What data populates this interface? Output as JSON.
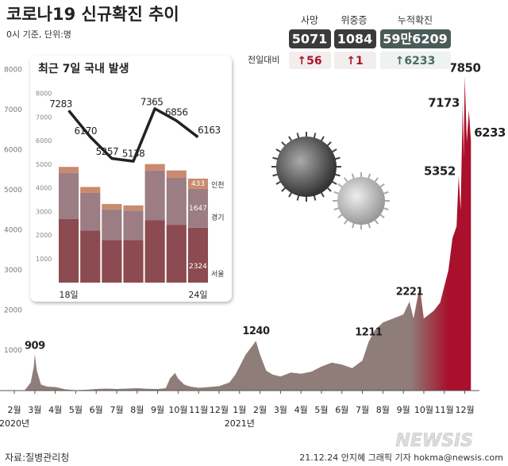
{
  "header": {
    "title": "코로나19 신규확진 추이",
    "subtitle": "0시 기준, 단위:명"
  },
  "stats": {
    "change_title": "전일대비",
    "items": [
      {
        "label": "사망",
        "value": 5071,
        "change": 56,
        "change_label": "↑56"
      },
      {
        "label": "위중증",
        "value": 1084,
        "change": 1,
        "change_label": "↑1"
      },
      {
        "label": "누적확진",
        "value": 596209,
        "value_label": "59만6209",
        "change": 6233,
        "change_label": "↑6233"
      }
    ]
  },
  "chart_data": [
    {
      "type": "area",
      "color": "#8f7d79",
      "highlight_color": "#a8102c",
      "x": [
        -0.5,
        0.5,
        0.8,
        0.95,
        1.0,
        1.1,
        1.3,
        1.6,
        2.0,
        2.5,
        3.0,
        3.5,
        4.0,
        4.5,
        5.0,
        5.5,
        6.0,
        6.5,
        7.0,
        7.4,
        7.6,
        7.85,
        8.0,
        8.3,
        8.6,
        9.0,
        9.5,
        10.0,
        10.5,
        10.8,
        11.0,
        11.3,
        11.6,
        11.8,
        12.0,
        12.3,
        12.6,
        13.0,
        13.5,
        14.0,
        14.5,
        15.0,
        15.5,
        16.0,
        16.5,
        17.0,
        17.3,
        17.6,
        18.0,
        18.5,
        19.0,
        19.3,
        19.5,
        19.8,
        20.0,
        20.5,
        20.8,
        21.0,
        21.2,
        21.4,
        21.6,
        21.7,
        21.8,
        21.9,
        21.95,
        22.0,
        22.1,
        22.2,
        22.3
      ],
      "values": [
        0,
        5,
        200,
        600,
        909,
        500,
        150,
        100,
        90,
        30,
        10,
        20,
        40,
        50,
        40,
        50,
        60,
        45,
        40,
        60,
        300,
        440,
        300,
        150,
        100,
        70,
        90,
        110,
        200,
        400,
        600,
        900,
        1100,
        1240,
        900,
        500,
        400,
        350,
        450,
        420,
        470,
        600,
        700,
        650,
        560,
        750,
        1211,
        1500,
        1700,
        1800,
        1900,
        2221,
        1800,
        2600,
        1800,
        2000,
        2200,
        2600,
        3000,
        3800,
        4100,
        5352,
        4500,
        7173,
        5800,
        7850,
        6200,
        7000,
        6233
      ],
      "xlim": [
        -0.7,
        22.6
      ],
      "xticks": [
        {
          "value": 0,
          "label": "2월"
        },
        {
          "value": 1,
          "label": "3월"
        },
        {
          "value": 2,
          "label": "4월"
        },
        {
          "value": 3,
          "label": "5월"
        },
        {
          "value": 4,
          "label": "6월"
        },
        {
          "value": 5,
          "label": "7월"
        },
        {
          "value": 6,
          "label": "8월"
        },
        {
          "value": 7,
          "label": "9월"
        },
        {
          "value": 8,
          "label": "10월"
        },
        {
          "value": 9,
          "label": "11월"
        },
        {
          "value": 10,
          "label": "12월"
        },
        {
          "value": 11,
          "label": "1월"
        },
        {
          "value": 12,
          "label": "2월"
        },
        {
          "value": 13,
          "label": "3월"
        },
        {
          "value": 14,
          "label": "4월"
        },
        {
          "value": 15,
          "label": "5월"
        },
        {
          "value": 16,
          "label": "6월"
        },
        {
          "value": 17,
          "label": "7월"
        },
        {
          "value": 18,
          "label": "8월"
        },
        {
          "value": 19,
          "label": "9월"
        },
        {
          "value": 20,
          "label": "10월"
        },
        {
          "value": 21,
          "label": "11월"
        },
        {
          "value": 22,
          "label": "12월"
        }
      ],
      "year_labels": [
        {
          "value": 0,
          "label": "2020년"
        },
        {
          "value": 11,
          "label": "2021년"
        }
      ],
      "ylim": [
        0,
        8500
      ],
      "yticks": [
        1000,
        2000,
        3000,
        4000,
        5000,
        6000,
        7000,
        8000
      ],
      "annotations": [
        {
          "x": 1.0,
          "y": 909
        },
        {
          "x": 11.8,
          "y": 1240
        },
        {
          "x": 17.3,
          "y": 1211
        },
        {
          "x": 19.3,
          "y": 2221
        },
        {
          "x": 21.7,
          "y": 5352
        },
        {
          "x": 21.9,
          "y": 7173
        },
        {
          "x": 22.0,
          "y": 7850
        },
        {
          "x": 22.3,
          "y": 6233
        }
      ]
    },
    {
      "type": "stacked_bar",
      "title": "최근 7일 국내 발생",
      "categories": [
        "18일",
        null,
        null,
        null,
        null,
        null,
        "24일"
      ],
      "series": [
        {
          "name": "서울",
          "color": "#8b4b50",
          "values": [
            2700,
            2200,
            1800,
            1800,
            2650,
            2450,
            2324
          ]
        },
        {
          "name": "경기",
          "color": "#9c7d84",
          "values": [
            1950,
            1600,
            1300,
            1250,
            2100,
            2000,
            1647
          ]
        },
        {
          "name": "인천",
          "color": "#c98a6e",
          "values": [
            250,
            250,
            230,
            220,
            270,
            300,
            433
          ]
        }
      ],
      "line": {
        "color": "#222222",
        "values": [
          7283,
          6170,
          5257,
          5138,
          7365,
          6856,
          6163
        ]
      },
      "ylim": [
        0,
        8000
      ],
      "yticks": [
        1000,
        2000,
        3000,
        4000,
        5000,
        6000,
        7000,
        8000
      ]
    }
  ],
  "footer": {
    "source": "자료:질병관리청",
    "credit": "21.12.24 안지혜 그래픽 기자 hokma@newsis.com",
    "watermark": "NEWSIS"
  }
}
